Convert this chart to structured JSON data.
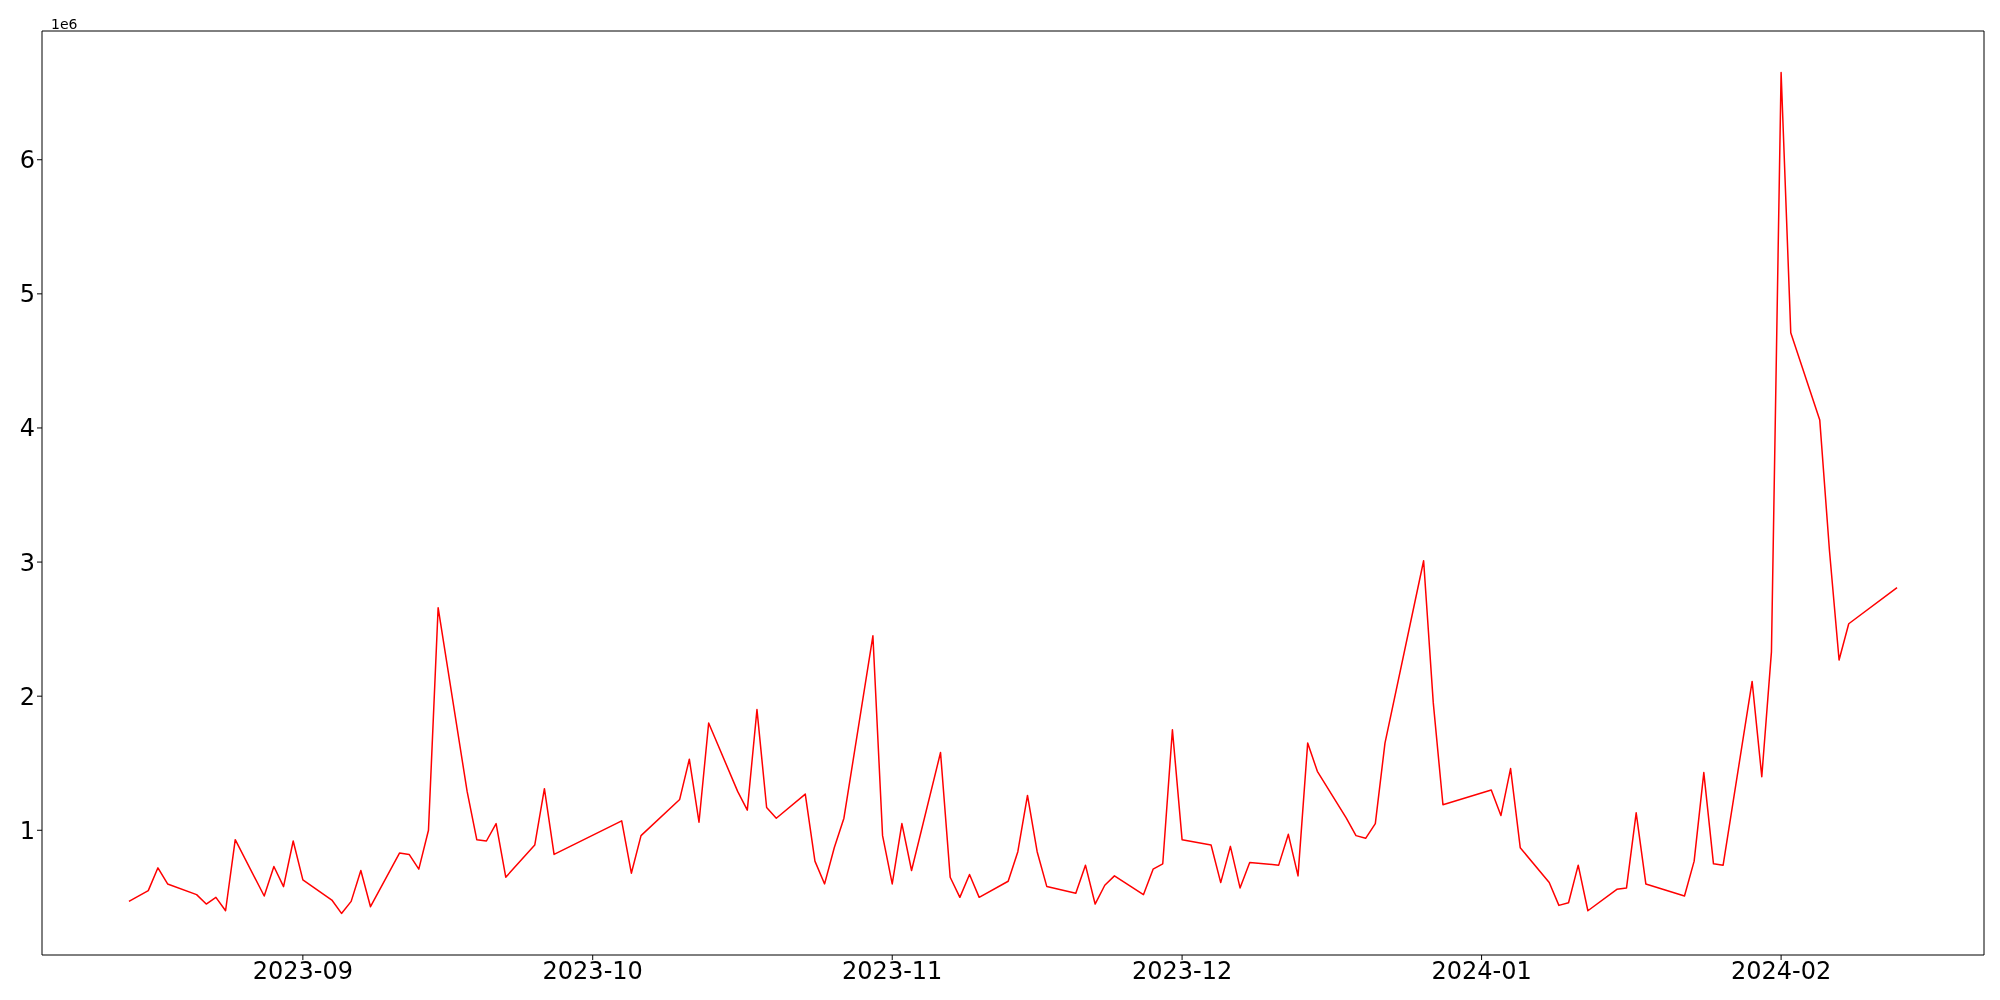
{
  "chart_data": {
    "type": "line",
    "annotations": [
      "1e6"
    ],
    "x": [
      "2023-08-14",
      "2023-08-16",
      "2023-08-17",
      "2023-08-18",
      "2023-08-21",
      "2023-08-22",
      "2023-08-23",
      "2023-08-24",
      "2023-08-25",
      "2023-08-28",
      "2023-08-29",
      "2023-08-30",
      "2023-08-31",
      "2023-09-01",
      "2023-09-04",
      "2023-09-05",
      "2023-09-06",
      "2023-09-07",
      "2023-09-08",
      "2023-09-11",
      "2023-09-12",
      "2023-09-13",
      "2023-09-14",
      "2023-09-15",
      "2023-09-18",
      "2023-09-19",
      "2023-09-20",
      "2023-09-21",
      "2023-09-22",
      "2023-09-25",
      "2023-09-26",
      "2023-09-27",
      "2023-10-04",
      "2023-10-05",
      "2023-10-06",
      "2023-10-10",
      "2023-10-11",
      "2023-10-12",
      "2023-10-13",
      "2023-10-16",
      "2023-10-17",
      "2023-10-18",
      "2023-10-19",
      "2023-10-20",
      "2023-10-23",
      "2023-10-24",
      "2023-10-25",
      "2023-10-26",
      "2023-10-27",
      "2023-10-30",
      "2023-10-31",
      "2023-11-01",
      "2023-11-02",
      "2023-11-03",
      "2023-11-06",
      "2023-11-07",
      "2023-11-08",
      "2023-11-09",
      "2023-11-10",
      "2023-11-13",
      "2023-11-14",
      "2023-11-15",
      "2023-11-16",
      "2023-11-17",
      "2023-11-20",
      "2023-11-21",
      "2023-11-22",
      "2023-11-23",
      "2023-11-24",
      "2023-11-27",
      "2023-11-28",
      "2023-11-29",
      "2023-11-30",
      "2023-12-01",
      "2023-12-04",
      "2023-12-05",
      "2023-12-06",
      "2023-12-07",
      "2023-12-08",
      "2023-12-11",
      "2023-12-12",
      "2023-12-13",
      "2023-12-14",
      "2023-12-15",
      "2023-12-18",
      "2023-12-19",
      "2023-12-20",
      "2023-12-21",
      "2023-12-22",
      "2023-12-26",
      "2023-12-27",
      "2023-12-28",
      "2024-01-02",
      "2024-01-03",
      "2024-01-04",
      "2024-01-05",
      "2024-01-08",
      "2024-01-09",
      "2024-01-10",
      "2024-01-11",
      "2024-01-12",
      "2024-01-15",
      "2024-01-16",
      "2024-01-17",
      "2024-01-18",
      "2024-01-22",
      "2024-01-23",
      "2024-01-24",
      "2024-01-25",
      "2024-01-26",
      "2024-01-29",
      "2024-01-30",
      "2024-01-31",
      "2024-02-01",
      "2024-02-02",
      "2024-02-05",
      "2024-02-06",
      "2024-02-07",
      "2024-02-08",
      "2024-02-13"
    ],
    "series": [
      {
        "color": "#ff0000",
        "values": [
          0.47,
          0.55,
          0.72,
          0.6,
          0.52,
          0.45,
          0.5,
          0.4,
          0.93,
          0.51,
          0.73,
          0.58,
          0.92,
          0.63,
          0.48,
          0.38,
          0.47,
          0.7,
          0.43,
          0.83,
          0.82,
          0.71,
          1.0,
          2.66,
          1.29,
          0.93,
          0.92,
          1.05,
          0.65,
          0.89,
          1.31,
          0.82,
          1.07,
          0.68,
          0.96,
          1.23,
          1.53,
          1.06,
          1.8,
          1.29,
          1.15,
          1.9,
          1.17,
          1.09,
          1.27,
          0.77,
          0.6,
          0.87,
          1.09,
          2.45,
          0.96,
          0.6,
          1.05,
          0.7,
          1.58,
          0.65,
          0.5,
          0.67,
          0.5,
          0.62,
          0.84,
          1.26,
          0.84,
          0.58,
          0.53,
          0.74,
          0.45,
          0.59,
          0.66,
          0.52,
          0.71,
          0.75,
          1.75,
          0.93,
          0.89,
          0.61,
          0.88,
          0.57,
          0.76,
          0.74,
          0.97,
          0.66,
          1.65,
          1.44,
          1.09,
          0.96,
          0.94,
          1.05,
          1.65,
          3.01,
          1.95,
          1.19,
          1.3,
          1.11,
          1.46,
          0.87,
          0.61,
          0.44,
          0.46,
          0.74,
          0.4,
          0.56,
          0.57,
          1.13,
          0.6,
          0.51,
          0.77,
          1.43,
          0.75,
          0.74,
          2.11,
          1.4,
          2.33,
          6.65,
          4.71,
          4.06,
          3.09,
          2.27,
          2.54,
          2.81
        ]
      }
    ],
    "xlim": [
      "2023-08-05",
      "2024-02-22"
    ],
    "xticks": [
      "2023-09",
      "2023-10",
      "2023-11",
      "2023-12",
      "2024-01",
      "2024-02"
    ],
    "ylim": [
      0.07,
      6.96
    ],
    "yticks": [
      1,
      2,
      3,
      4,
      5,
      6
    ]
  }
}
